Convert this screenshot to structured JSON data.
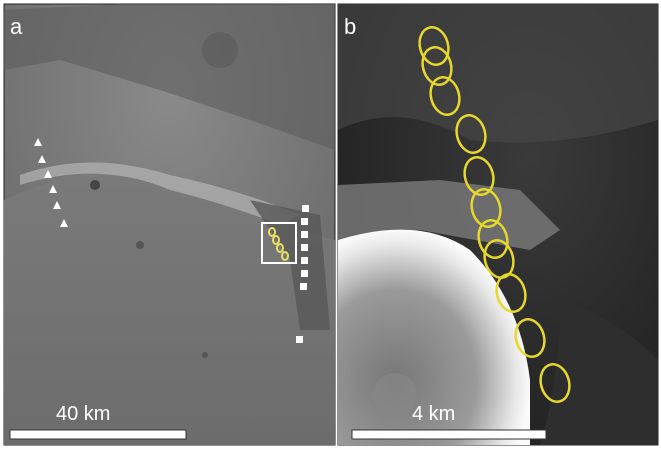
{
  "panels": [
    {
      "label": "a",
      "scale": "40 km"
    },
    {
      "label": "b",
      "scale": "4 km"
    }
  ]
}
